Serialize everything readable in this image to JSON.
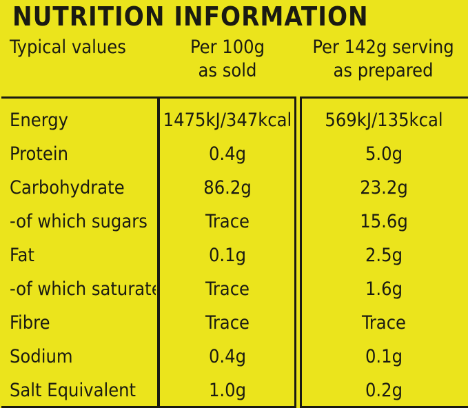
{
  "title": "NUTRITION INFORMATION",
  "table": {
    "header": [
      "Typical values",
      "Per 100g\nas sold",
      "Per 142g serving\nas prepared"
    ],
    "rows": [
      [
        "Energy",
        "1475kJ/347kcal",
        "569kJ/135kcal"
      ],
      [
        "Protein",
        "0.4g",
        "5.0g"
      ],
      [
        "Carbohydrate",
        "86.2g",
        "23.2g"
      ],
      [
        "-of which sugars",
        "Trace",
        "15.6g"
      ],
      [
        "Fat",
        "0.1g",
        "2.5g"
      ],
      [
        "-of which saturates",
        "Trace",
        "1.6g"
      ],
      [
        "Fibre",
        "Trace",
        "Trace"
      ],
      [
        "Sodium",
        "0.4g",
        "0.1g"
      ],
      [
        "Salt Equivalent",
        "1.0g",
        "0.2g"
      ]
    ]
  }
}
